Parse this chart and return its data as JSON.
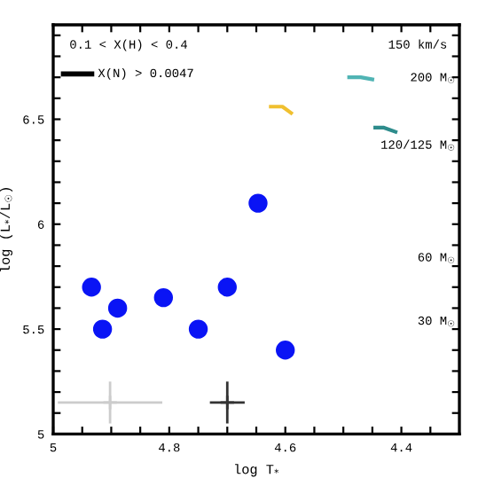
{
  "chart_data": {
    "type": "scatter",
    "xlabel": "log T$_{*}$",
    "ylabel": "log (L$_{*}$/L$_{☉}$)",
    "xlim": [
      5,
      4.3
    ],
    "ylim": [
      5,
      6.95
    ],
    "xticks": [
      5,
      {
        "value": 4.95,
        "label": null
      },
      {
        "value": 4.9,
        "label": null
      },
      {
        "value": 4.85,
        "label": null
      },
      4.8,
      {
        "value": 4.75,
        "label": null
      },
      {
        "value": 4.7,
        "label": null
      },
      {
        "value": 4.65,
        "label": null
      },
      4.6,
      {
        "value": 4.55,
        "label": null
      },
      {
        "value": 4.5,
        "label": null
      },
      {
        "value": 4.45,
        "label": null
      },
      4.4,
      {
        "value": 4.35,
        "label": null
      }
    ],
    "yticks": [
      5,
      {
        "value": 5.1,
        "label": null
      },
      {
        "value": 5.2,
        "label": null
      },
      {
        "value": 5.3,
        "label": null
      },
      {
        "value": 5.4,
        "label": null
      },
      5.5,
      {
        "value": 5.6,
        "label": null
      },
      {
        "value": 5.7,
        "label": null
      },
      {
        "value": 5.8,
        "label": null
      },
      {
        "value": 5.9,
        "label": null
      },
      6,
      {
        "value": 6.1,
        "label": null
      },
      {
        "value": 6.2,
        "label": null
      },
      {
        "value": 6.3,
        "label": null
      },
      {
        "value": 6.4,
        "label": null
      },
      6.5,
      {
        "value": 6.6,
        "label": null
      },
      {
        "value": 6.7,
        "label": null
      },
      {
        "value": 6.8,
        "label": null
      },
      {
        "value": 6.9,
        "label": null
      }
    ],
    "grid": false,
    "legend": false,
    "series": [
      {
        "type": "scatter",
        "marker": "circle",
        "color": "#0a14f5",
        "x": [
          4.934,
          4.915,
          4.889,
          4.81,
          4.75,
          4.7,
          4.6,
          4.647
        ],
        "values": [
          5.7,
          5.5,
          5.6,
          5.65,
          5.5,
          5.7,
          5.4,
          6.1
        ]
      },
      {
        "type": "line",
        "color": "#50b4b4",
        "x": [
          4.49,
          4.47,
          4.45
        ],
        "values": [
          6.7,
          6.7,
          6.69
        ]
      },
      {
        "type": "line",
        "color": "#f0c030",
        "x": [
          4.625,
          4.605,
          4.59
        ],
        "values": [
          6.56,
          6.56,
          6.53
        ]
      },
      {
        "type": "line",
        "color": "#2e8c8c",
        "x": [
          4.445,
          4.43,
          4.41
        ],
        "values": [
          6.46,
          6.46,
          6.44
        ]
      },
      {
        "type": "scatter",
        "marker": "cross",
        "color": "#cccccc",
        "x": [
          4.902
        ],
        "values": [
          5.15
        ],
        "errors": [
          0.1
        ],
        "xerrors": [
          0.09
        ]
      },
      {
        "type": "scatter",
        "marker": "cross",
        "color": "#333333",
        "x": [
          4.7
        ],
        "values": [
          5.15
        ],
        "errors": [
          0.1
        ],
        "xerrors": [
          0.03
        ]
      }
    ],
    "annotations": [
      "0.1 < X(H) < 0.4",
      "X(N) > 0.0047",
      "150 km/s",
      "200 M$_{☉}$",
      "120/125 M$_{☉}$",
      "60 M$_{☉}$",
      "30 M$_{☉}$"
    ]
  }
}
